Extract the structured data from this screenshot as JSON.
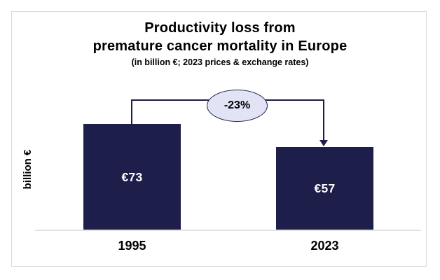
{
  "chart_data": {
    "type": "bar",
    "title_line1": "Productivity loss from",
    "title_line2": "premature cancer mortality in Europe",
    "subtitle": "(in billion €; 2023 prices & exchange rates)",
    "categories": [
      "1995",
      "2023"
    ],
    "values": [
      73,
      57
    ],
    "value_labels": [
      "€73",
      "€57"
    ],
    "series_name": "Productivity loss",
    "xlabel": "",
    "ylabel": "billion €",
    "ylim": [
      0,
      80
    ],
    "grid": false,
    "legend": false,
    "annotation": {
      "label": "-23%",
      "shape": "oval",
      "connects": [
        "1995",
        "2023"
      ]
    },
    "colors": {
      "bar": "#1E1E4A",
      "connector": "#1E1E4A",
      "annotation_fill": "#E2E3F5",
      "annotation_border": "#1E1E4A",
      "axis_line": "#E3E3E6",
      "frame_border": "#D9D9D9",
      "value_label": "#FFFFFF",
      "text": "#000000"
    }
  }
}
